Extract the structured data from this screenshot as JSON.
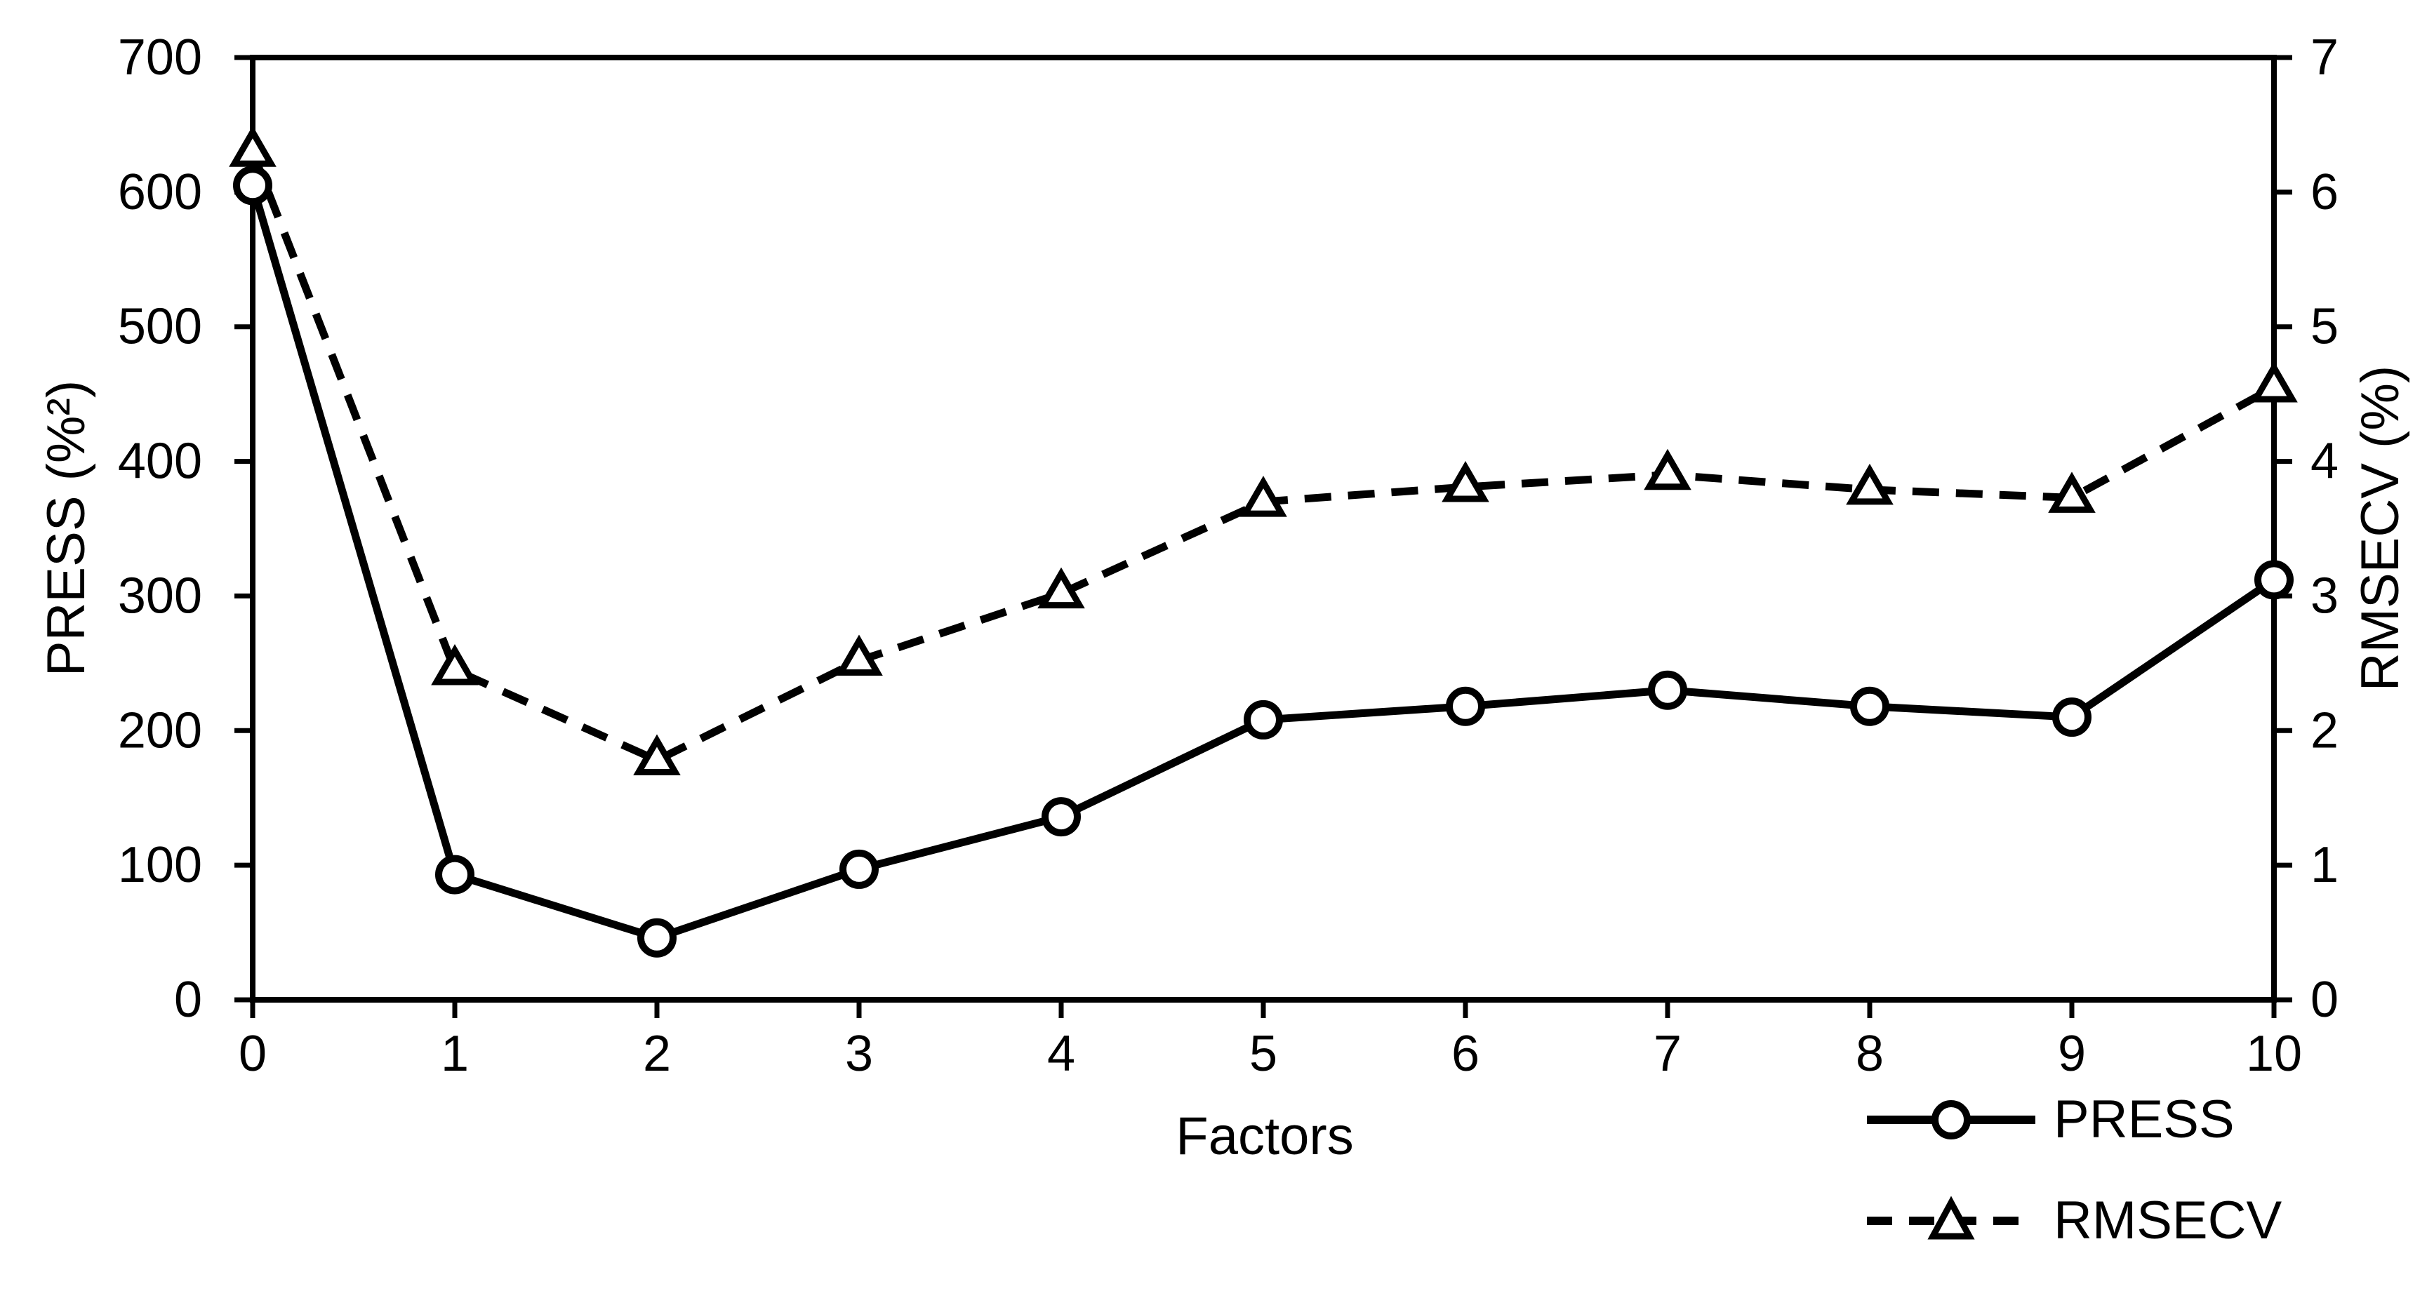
{
  "figure": {
    "background": "#ffffff",
    "ink": "#000000"
  },
  "chart_data": {
    "type": "line",
    "title": "",
    "xlabel": "Factors",
    "x": [
      0,
      1,
      2,
      3,
      4,
      5,
      6,
      7,
      8,
      9,
      10
    ],
    "x_tick_labels": [
      "0",
      "1",
      "2",
      "3",
      "4",
      "5",
      "6",
      "7",
      "8",
      "9",
      "10"
    ],
    "left_axis": {
      "label": "PRESS (%²)",
      "lim": [
        0,
        700
      ],
      "ticks": [
        0,
        100,
        200,
        300,
        400,
        500,
        600,
        700
      ]
    },
    "right_axis": {
      "label": "RMSECV (%)",
      "lim": [
        0,
        7
      ],
      "ticks": [
        0,
        1,
        2,
        3,
        4,
        5,
        6,
        7
      ]
    },
    "grid": false,
    "legend": {
      "position": "bottom-right",
      "entries": [
        "PRESS",
        "RMSECV"
      ]
    },
    "series": [
      {
        "name": "PRESS",
        "axis": "left",
        "line": "solid",
        "marker": "circle",
        "color": "#000000",
        "values": [
          605,
          93,
          46,
          97,
          136,
          208,
          218,
          230,
          218,
          210,
          312
        ]
      },
      {
        "name": "RMSECV",
        "axis": "right",
        "line": "dashed",
        "marker": "triangle",
        "color": "#000000",
        "values": [
          6.3,
          2.45,
          1.78,
          2.52,
          3.02,
          3.7,
          3.81,
          3.9,
          3.79,
          3.73,
          4.55
        ]
      }
    ]
  }
}
